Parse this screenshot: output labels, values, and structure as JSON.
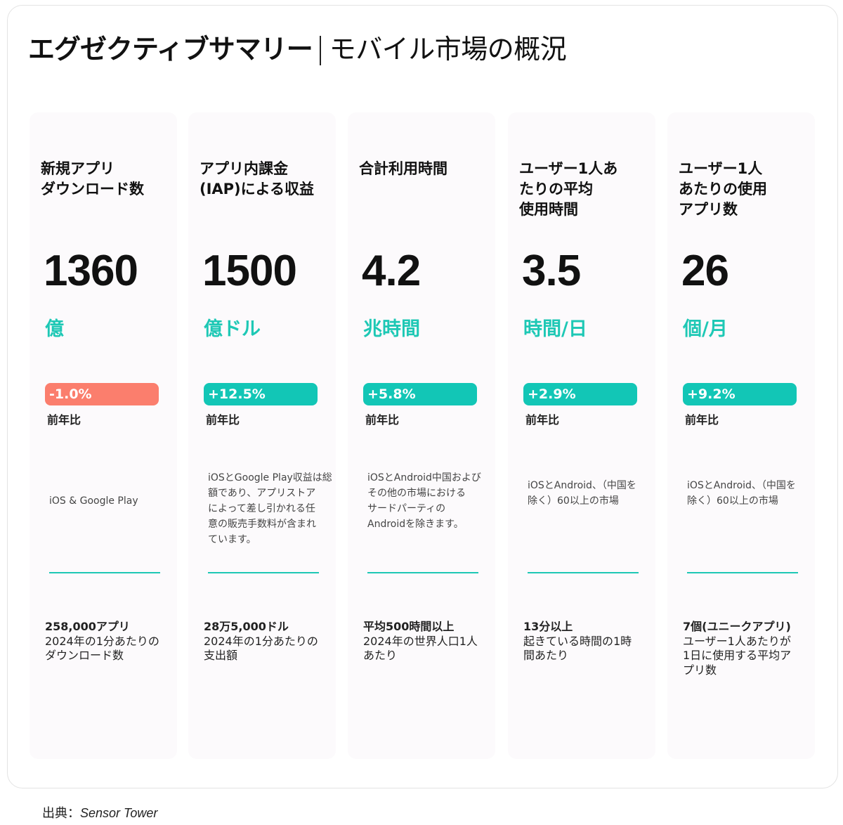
{
  "header": {
    "title": "エグゼクティブサマリー",
    "subtitle": "モバイル市場の概況"
  },
  "cards": [
    {
      "title_lines": [
        "新規アプリ",
        "ダウンロード数"
      ],
      "value": "1360",
      "unit": "億",
      "change": "-1.0%",
      "change_direction": "down",
      "yoy_label": "前年比",
      "note_lines": [
        "iOS & Google Play"
      ],
      "fact_head": "258,000アプリ",
      "fact_lines": [
        "2024年の1分あたりの",
        "ダウンロード数"
      ]
    },
    {
      "title_lines": [
        "アプリ内課金",
        "(IAP)による収益"
      ],
      "value": "1500",
      "unit": "億ドル",
      "change": "+12.5%",
      "change_direction": "up",
      "yoy_label": "前年比",
      "note_lines": [
        "iOSとGoogle Play収益は総",
        "額であり、アプリストア",
        "によって差し引かれる任",
        "意の販売手数料が含まれ",
        "ています。"
      ],
      "fact_head": "28万5,000ドル",
      "fact_lines": [
        "2024年の1分あたりの",
        "支出額"
      ]
    },
    {
      "title_lines": [
        "合計利用時間"
      ],
      "value": "4.2",
      "unit": "兆時間",
      "change": "+5.8%",
      "change_direction": "up",
      "yoy_label": "前年比",
      "note_lines": [
        "iOSとAndroid中国および",
        "その他の市場における",
        "サードパーティの",
        "Androidを除きます。"
      ],
      "fact_head": "平均500時間以上",
      "fact_lines": [
        "2024年の世界人口1人",
        "あたり"
      ]
    },
    {
      "title_lines": [
        "ユーザー1人あ",
        "たりの平均",
        "使用時間"
      ],
      "value": "3.5",
      "unit": "時間/日",
      "change": "+2.9%",
      "change_direction": "up",
      "yoy_label": "前年比",
      "note_lines": [
        "iOSとAndroid、（中国を",
        "除く）60以上の市場"
      ],
      "fact_head": "13分以上",
      "fact_lines": [
        "起きている時間の1時",
        "間あたり"
      ]
    },
    {
      "title_lines": [
        "ユーザー1人",
        "あたりの使用",
        "アプリ数"
      ],
      "value": "26",
      "unit": "個/月",
      "change": "+9.2%",
      "change_direction": "up",
      "yoy_label": "前年比",
      "note_lines": [
        "iOSとAndroid、（中国を",
        "除く）60以上の市場"
      ],
      "fact_head": "7個(ユニークアプリ)",
      "fact_lines": [
        "ユーザー1人あたりが",
        "1日に使用する平均ア",
        "プリ数"
      ]
    }
  ],
  "footer": {
    "source_label": "出典：",
    "source_name": "Sensor Tower"
  },
  "colors": {
    "accent": "#1ec8b5",
    "positive": "#12c6b6",
    "negative": "#fb7e6d"
  }
}
